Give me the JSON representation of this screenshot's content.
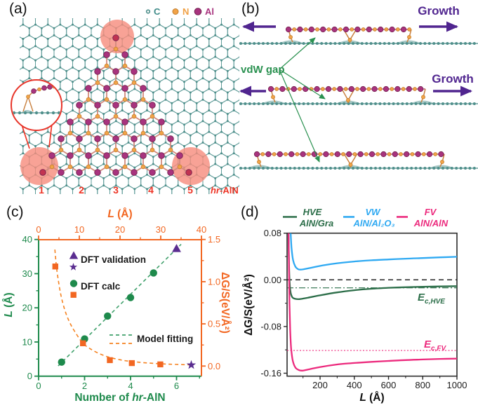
{
  "figure": {
    "panel_a": {
      "label": "(a)",
      "legend": [
        {
          "symbol": "C",
          "color": "#3d8a87"
        },
        {
          "symbol": "N",
          "color": "#f0a145"
        },
        {
          "symbol": "Al",
          "color": "#a8337e"
        }
      ],
      "numbers": [
        "1",
        "2",
        "3",
        "4",
        "5"
      ],
      "caption_italic": "hr",
      "caption_rest": "-AlN"
    },
    "panel_b": {
      "label": "(b)",
      "growth": "Growth",
      "vdw": "vdW gap"
    },
    "panel_c": {
      "label": "(c)",
      "top_axis_label": {
        "italic": "L",
        "rest": " (Å)"
      },
      "left_axis_label": {
        "italic": "L",
        "rest": " (Å)"
      },
      "right_axis_label": "ΔG/S(eV/Å²)",
      "bottom_axis_label": {
        "pre": "Number of ",
        "italic": "hr",
        "post": "-AlN"
      },
      "legend": {
        "validation": "DFT validation",
        "calc": "DFT calc",
        "fit": "Model fitting"
      }
    },
    "panel_d": {
      "label": "(d)",
      "ylabel": "ΔG/S(eV/Å²)",
      "xlabel": {
        "italic": "L",
        "rest": " (Å)"
      },
      "legend": [
        {
          "l1": "HVE",
          "l2": "AlN/Gra",
          "color": "#2c6e49"
        },
        {
          "l1": "VW",
          "l2": "AlN/Al₂O₃",
          "color": "#2ea9f2"
        },
        {
          "l1": "FV",
          "l2": "AlN/AlN",
          "color": "#ec2a7d"
        }
      ],
      "annotations": [
        {
          "main": "E",
          "sub": "c,HVE",
          "color": "#2c6e49"
        },
        {
          "main": "E",
          "sub": "c,FV",
          "color": "#ec2a7d"
        }
      ]
    }
  },
  "colors": {
    "carbon_teal": "#4f8f8b",
    "nitrogen_orange": "#f1a348",
    "aluminum_purple": "#a8337e",
    "corner_crimson": "#c23351",
    "highlight_red": "#f68d7f",
    "red_label": "#ee3425",
    "green_axis": "#1e8a4c",
    "orange_axis": "#f26722",
    "purple_marker": "#5a2d90",
    "growth_purple": "#50258f",
    "vdw_green": "#2a9150"
  },
  "chart_data": [
    {
      "id": "panel_c",
      "type": "scatter",
      "bottom_axis": {
        "label": "Number of hr-AlN",
        "ticks": [
          0,
          2,
          4,
          6
        ],
        "minor": [
          1,
          3,
          5,
          7
        ],
        "range": [
          0,
          7.08
        ]
      },
      "top_axis": {
        "label": "L (Å)",
        "ticks": [
          0,
          10,
          20,
          30,
          40
        ],
        "minor": [
          5,
          15,
          25,
          35
        ],
        "range": [
          0,
          40
        ]
      },
      "left_axis": {
        "label": "L (Å)",
        "ticks": [
          0,
          10,
          20,
          30,
          40
        ],
        "minor": [
          5,
          15,
          25,
          35
        ],
        "range": [
          0,
          40
        ]
      },
      "right_axis": {
        "label": "ΔG/S(eV/Å²)",
        "ticks": [
          "0.0",
          "0.5",
          "1.0",
          "1.5"
        ],
        "tick_values": [
          0,
          0.5,
          1.0,
          1.5
        ],
        "minor": [
          0.25,
          0.75,
          1.25
        ],
        "range": [
          -0.12,
          1.5
        ]
      },
      "series": [
        {
          "name": "DFT calc (L vs number)",
          "marker": "circle",
          "color": "#1e8a4c",
          "x_axis": "bottom",
          "y_axis": "left",
          "x": [
            1,
            2,
            3,
            4,
            5
          ],
          "y": [
            4.1,
            10.9,
            17.6,
            23.0,
            30.2
          ]
        },
        {
          "name": "DFT validation (L vs number)",
          "marker": "triangle",
          "color": "#5a2d90",
          "x_axis": "bottom",
          "y_axis": "left",
          "x": [
            6
          ],
          "y": [
            37.3
          ]
        },
        {
          "name": "DFT calc (dG/S vs L)",
          "marker": "square",
          "color": "#f26722",
          "x_axis": "top",
          "y_axis": "right",
          "x": [
            4.1,
            10.9,
            17.5,
            22.9,
            29.9
          ],
          "y": [
            1.18,
            0.27,
            0.07,
            0.035,
            0.02
          ]
        },
        {
          "name": "DFT validation (dG/S vs L)",
          "marker": "star",
          "color": "#5a2d90",
          "x_axis": "top",
          "y_axis": "right",
          "x": [
            37.5
          ],
          "y": [
            0.013
          ]
        }
      ],
      "fits": [
        {
          "name": "Model fitting (L)",
          "color": "#3fa06b",
          "x_axis": "bottom",
          "y_axis": "left",
          "points": [
            [
              0.85,
              3.0
            ],
            [
              6.2,
              38.6
            ]
          ]
        },
        {
          "name": "Model fitting (dG/S)",
          "color": "#f58220",
          "x_axis": "top",
          "y_axis": "right",
          "points": [
            [
              4.0,
              1.38
            ],
            [
              4.5,
              1.13
            ],
            [
              5.4,
              0.86
            ],
            [
              6.4,
              0.67
            ],
            [
              7.6,
              0.52
            ],
            [
              9.0,
              0.4
            ],
            [
              10.9,
              0.27
            ],
            [
              13,
              0.195
            ],
            [
              15.5,
              0.135
            ],
            [
              18,
              0.096
            ],
            [
              21,
              0.066
            ],
            [
              24,
              0.048
            ],
            [
              27,
              0.036
            ],
            [
              30,
              0.027
            ],
            [
              33,
              0.021
            ],
            [
              37.5,
              0.014
            ]
          ]
        }
      ]
    },
    {
      "id": "panel_d",
      "type": "line",
      "x_axis": {
        "label": "L (Å)",
        "ticks": [
          200,
          400,
          600,
          800,
          1000
        ],
        "minor": [
          100,
          300,
          500,
          700,
          900
        ],
        "range": [
          7,
          1000
        ]
      },
      "y_axis": {
        "label": "ΔG/S(eV/Å²)",
        "ticks": [
          "0.08",
          "0.00",
          "-0.08",
          "-0.16"
        ],
        "tick_values": [
          0.08,
          0.0,
          -0.08,
          -0.16
        ],
        "minor": [
          0.04,
          -0.04,
          -0.12
        ],
        "range": [
          -0.165,
          0.081
        ]
      },
      "series": [
        {
          "name": "HVE AlN/Gra",
          "color": "#2c6e49",
          "points": [
            [
              15,
              0.081
            ],
            [
              18,
              0.03
            ],
            [
              22,
              -0.005
            ],
            [
              28,
              -0.022
            ],
            [
              38,
              -0.03
            ],
            [
              55,
              -0.0325
            ],
            [
              80,
              -0.033
            ],
            [
              130,
              -0.0305
            ],
            [
              200,
              -0.0265
            ],
            [
              300,
              -0.0215
            ],
            [
              400,
              -0.0178
            ],
            [
              500,
              -0.0152
            ],
            [
              600,
              -0.0136
            ],
            [
              700,
              -0.0126
            ],
            [
              800,
              -0.0119
            ],
            [
              900,
              -0.0113
            ],
            [
              1000,
              -0.0108
            ]
          ]
        },
        {
          "name": "VW AlN/Al2O3",
          "color": "#2ea9f2",
          "points": [
            [
              28,
              0.081
            ],
            [
              33,
              0.055
            ],
            [
              42,
              0.034
            ],
            [
              55,
              0.023
            ],
            [
              70,
              0.0185
            ],
            [
              85,
              0.0175
            ],
            [
              110,
              0.0185
            ],
            [
              160,
              0.0215
            ],
            [
              220,
              0.025
            ],
            [
              300,
              0.0285
            ],
            [
              400,
              0.0315
            ],
            [
              500,
              0.0335
            ],
            [
              600,
              0.035
            ],
            [
              700,
              0.0363
            ],
            [
              800,
              0.0374
            ],
            [
              900,
              0.0385
            ],
            [
              1000,
              0.0395
            ]
          ]
        },
        {
          "name": "FV AlN/AlN",
          "color": "#ec2a7d",
          "points": [
            [
              16,
              0.081
            ],
            [
              18,
              0.02
            ],
            [
              21,
              -0.04
            ],
            [
              25,
              -0.085
            ],
            [
              31,
              -0.118
            ],
            [
              40,
              -0.138
            ],
            [
              55,
              -0.15
            ],
            [
              75,
              -0.1545
            ],
            [
              97,
              -0.1555
            ],
            [
              140,
              -0.153
            ],
            [
              200,
              -0.1495
            ],
            [
              300,
              -0.145
            ],
            [
              400,
              -0.1425
            ],
            [
              500,
              -0.1405
            ],
            [
              600,
              -0.139
            ],
            [
              700,
              -0.1375
            ],
            [
              800,
              -0.1365
            ],
            [
              900,
              -0.1355
            ],
            [
              1000,
              -0.135
            ]
          ]
        }
      ],
      "reference_lines": [
        {
          "name": "zero line",
          "value": 0.0,
          "style": "dashed",
          "color": "#222222"
        },
        {
          "name": "E_c,HVE",
          "value": -0.0137,
          "style": "dash-dot",
          "color": "#2c6e49"
        },
        {
          "name": "E_c,FV",
          "value": -0.121,
          "style": "dotted",
          "color": "#ec2a7d"
        }
      ]
    }
  ]
}
